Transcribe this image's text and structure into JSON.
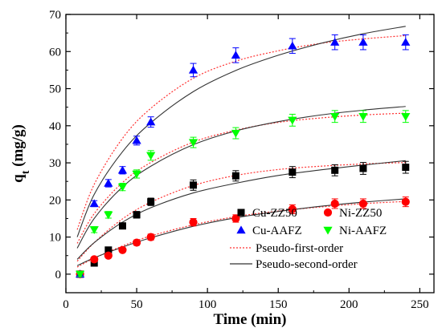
{
  "chart_data": {
    "type": "scatter",
    "xlabel": "Time (min)",
    "ylabel_main": "q",
    "ylabel_sub": "t",
    "ylabel_unit": " (mg/g)",
    "xlim": [
      0,
      260
    ],
    "ylim": [
      -5,
      70
    ],
    "xticks": [
      0,
      50,
      100,
      150,
      200,
      250
    ],
    "yticks": [
      0,
      10,
      20,
      30,
      40,
      50,
      60,
      70
    ],
    "x": [
      10,
      20,
      30,
      40,
      50,
      60,
      90,
      120,
      160,
      190,
      210,
      240
    ],
    "series": [
      {
        "name": "Cu-ZZ50",
        "marker": "square",
        "color": "#000000",
        "values": [
          0,
          3,
          6.5,
          13,
          16,
          19.5,
          24,
          26.5,
          27.5,
          28,
          28.5,
          28.8
        ],
        "errors": [
          0.6,
          0.6,
          0.7,
          0.8,
          0.9,
          1.0,
          1.4,
          1.4,
          1.5,
          1.5,
          1.6,
          1.6
        ]
      },
      {
        "name": "Ni-ZZ50",
        "marker": "circle",
        "color": "#ff0000",
        "values": [
          0,
          4,
          5,
          6.5,
          8.5,
          10,
          14,
          15,
          17.5,
          19,
          19,
          19.5
        ],
        "errors": [
          0.5,
          0.5,
          0.6,
          0.6,
          0.7,
          0.8,
          1.0,
          1.0,
          1.2,
          1.3,
          1.3,
          1.3
        ]
      },
      {
        "name": "Cu-AAFZ",
        "marker": "triangle-up",
        "color": "#0000ff",
        "values": [
          0,
          19,
          24.5,
          28,
          36,
          41,
          55,
          59,
          61.5,
          62.5,
          62.5,
          62.5
        ],
        "errors": [
          0.6,
          0.8,
          1.0,
          1.0,
          1.2,
          1.4,
          1.8,
          2.0,
          2.0,
          2.0,
          2.0,
          2.0
        ]
      },
      {
        "name": "Ni-AAFZ",
        "marker": "triangle-down",
        "color": "#00ff00",
        "values": [
          0,
          12,
          16,
          23.5,
          27,
          32,
          35.5,
          38,
          41.5,
          42.5,
          42.5,
          42.5
        ],
        "errors": [
          0.6,
          0.8,
          0.9,
          1.0,
          1.1,
          1.3,
          1.4,
          1.5,
          1.6,
          1.6,
          1.6,
          1.6
        ]
      }
    ],
    "fits": [
      {
        "name": "Pseudo-first-order",
        "style": "dotted",
        "color": "#ff3333",
        "curves": [
          {
            "x": [
              8,
              20,
              40,
              60,
              90,
              120,
              150,
              180,
              210,
              240
            ],
            "y": [
              3.5,
              8.5,
              14.9,
              19.4,
              23.9,
              26.6,
              28.2,
              29.1,
              29.7,
              30.1
            ]
          },
          {
            "x": [
              8,
              20,
              40,
              60,
              90,
              120,
              150,
              180,
              210,
              240
            ],
            "y": [
              1.9,
              4.3,
              7.6,
              10.3,
              13.3,
              15.5,
              17.0,
              18.1,
              19.0,
              19.6
            ]
          },
          {
            "x": [
              8,
              20,
              40,
              60,
              90,
              120,
              150,
              180,
              210,
              240
            ],
            "y": [
              12.0,
              24.2,
              36.6,
              44.7,
              52.8,
              57.4,
              60.2,
              62.2,
              63.4,
              64.3
            ]
          },
          {
            "x": [
              8,
              20,
              40,
              60,
              90,
              120,
              150,
              180,
              210,
              240
            ],
            "y": [
              8.3,
              16.3,
              24.7,
              30.1,
              35.6,
              38.8,
              40.9,
              42.1,
              42.9,
              43.4
            ]
          }
        ]
      },
      {
        "name": "Pseudo-second-order",
        "style": "solid",
        "color": "#333333",
        "curves": [
          {
            "x": [
              8,
              20,
              40,
              60,
              90,
              120,
              150,
              180,
              210,
              240
            ],
            "y": [
              4.0,
              8.5,
              14.0,
              17.9,
              21.9,
              24.5,
              26.6,
              28.1,
              29.4,
              30.6
            ]
          },
          {
            "x": [
              8,
              20,
              40,
              60,
              90,
              120,
              150,
              180,
              210,
              240
            ],
            "y": [
              2.3,
              4.4,
              7.3,
              9.8,
              12.9,
              15.2,
              16.9,
              18.3,
              19.4,
              20.3
            ]
          },
          {
            "x": [
              8,
              20,
              40,
              60,
              90,
              120,
              150,
              180,
              210,
              240
            ],
            "y": [
              10.0,
              21.5,
              33.0,
              40.8,
              49.2,
              54.9,
              59.0,
              62.2,
              64.8,
              66.8
            ]
          },
          {
            "x": [
              8,
              20,
              40,
              60,
              90,
              120,
              150,
              180,
              210,
              240
            ],
            "y": [
              7.0,
              15.0,
              23.5,
              29.1,
              34.9,
              38.6,
              41.1,
              42.9,
              44.2,
              45.2
            ]
          }
        ]
      }
    ],
    "legend_placement": "bottom-right",
    "grid": false
  }
}
